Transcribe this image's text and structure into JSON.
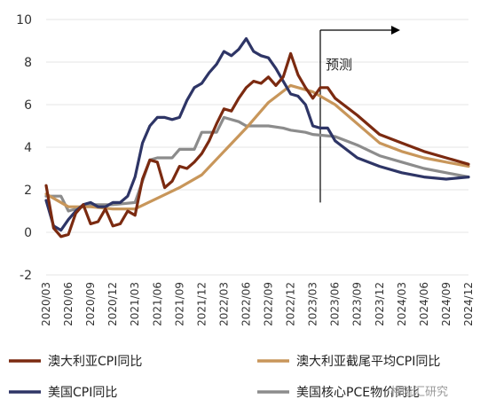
{
  "chart_data": {
    "type": "line",
    "ylim": [
      -2,
      10
    ],
    "y_ticks": [
      -2,
      0,
      2,
      4,
      6,
      8,
      10
    ],
    "x_labels": [
      "2020/03",
      "2020/06",
      "2020/09",
      "2020/12",
      "2021/03",
      "2021/06",
      "2021/09",
      "2021/12",
      "2022/03",
      "2022/06",
      "2022/09",
      "2022/12",
      "2023/03",
      "2023/06",
      "2023/09",
      "2023/12",
      "2024/03",
      "2024/06",
      "2024/09",
      "2024/12"
    ],
    "x_start": "2020/03",
    "x_end": "2024/12",
    "forecast_start": "2023/04",
    "annotation": "预测",
    "series": [
      {
        "name": "澳大利亚CPI同比",
        "color": "#7b2a10",
        "points": [
          [
            "2020/03",
            2.2
          ],
          [
            "2020/04",
            0.2
          ],
          [
            "2020/05",
            -0.2
          ],
          [
            "2020/06",
            -0.1
          ],
          [
            "2020/07",
            0.9
          ],
          [
            "2020/08",
            1.3
          ],
          [
            "2020/09",
            0.4
          ],
          [
            "2020/10",
            0.5
          ],
          [
            "2020/11",
            1.1
          ],
          [
            "2020/12",
            0.3
          ],
          [
            "2021/01",
            0.4
          ],
          [
            "2021/02",
            1.0
          ],
          [
            "2021/03",
            0.8
          ],
          [
            "2021/04",
            2.5
          ],
          [
            "2021/05",
            3.4
          ],
          [
            "2021/06",
            3.3
          ],
          [
            "2021/07",
            2.1
          ],
          [
            "2021/08",
            2.4
          ],
          [
            "2021/09",
            3.1
          ],
          [
            "2021/10",
            3.0
          ],
          [
            "2021/11",
            3.3
          ],
          [
            "2021/12",
            3.7
          ],
          [
            "2021/13",
            4.3
          ],
          [
            "2022/02",
            5.1
          ],
          [
            "2022/03",
            5.8
          ],
          [
            "2022/04",
            5.7
          ],
          [
            "2022/05",
            6.3
          ],
          [
            "2022/06",
            6.8
          ],
          [
            "2022/07",
            7.1
          ],
          [
            "2022/08",
            7.0
          ],
          [
            "2022/09",
            7.3
          ],
          [
            "2022/10",
            6.9
          ],
          [
            "2022/11",
            7.3
          ],
          [
            "2022/12",
            8.4
          ],
          [
            "2023/01",
            7.4
          ],
          [
            "2023/02",
            6.8
          ],
          [
            "2023/03",
            6.3
          ],
          [
            "2023/04",
            6.8
          ],
          [
            "2023/05",
            6.8
          ],
          [
            "2023/06",
            6.3
          ],
          [
            "2023/09",
            5.5
          ],
          [
            "2023/12",
            4.6
          ],
          [
            "2024/03",
            4.2
          ],
          [
            "2024/06",
            3.8
          ],
          [
            "2024/09",
            3.5
          ],
          [
            "2024/12",
            3.2
          ]
        ]
      },
      {
        "name": "澳大利亚截尾平均CPI同比",
        "color": "#c8965a",
        "points": [
          [
            "2020/03",
            1.8
          ],
          [
            "2020/06",
            1.2
          ],
          [
            "2020/09",
            1.2
          ],
          [
            "2020/12",
            1.1
          ],
          [
            "2021/03",
            1.1
          ],
          [
            "2021/06",
            1.6
          ],
          [
            "2021/09",
            2.1
          ],
          [
            "2021/12",
            2.7
          ],
          [
            "2022/03",
            3.8
          ],
          [
            "2022/06",
            4.9
          ],
          [
            "2022/09",
            6.1
          ],
          [
            "2022/12",
            6.9
          ],
          [
            "2023/03",
            6.6
          ],
          [
            "2023/06",
            6.0
          ],
          [
            "2023/09",
            5.1
          ],
          [
            "2023/12",
            4.2
          ],
          [
            "2024/03",
            3.8
          ],
          [
            "2024/06",
            3.5
          ],
          [
            "2024/09",
            3.3
          ],
          [
            "2024/12",
            3.1
          ]
        ]
      },
      {
        "name": "美国CPI同比",
        "color": "#2e3566",
        "points": [
          [
            "2020/03",
            1.5
          ],
          [
            "2020/04",
            0.3
          ],
          [
            "2020/05",
            0.1
          ],
          [
            "2020/06",
            0.6
          ],
          [
            "2020/07",
            1.0
          ],
          [
            "2020/08",
            1.3
          ],
          [
            "2020/09",
            1.4
          ],
          [
            "2020/10",
            1.2
          ],
          [
            "2020/11",
            1.2
          ],
          [
            "2020/12",
            1.4
          ],
          [
            "2021/01",
            1.4
          ],
          [
            "2021/02",
            1.7
          ],
          [
            "2021/03",
            2.6
          ],
          [
            "2021/04",
            4.2
          ],
          [
            "2021/05",
            5.0
          ],
          [
            "2021/06",
            5.4
          ],
          [
            "2021/07",
            5.4
          ],
          [
            "2021/08",
            5.3
          ],
          [
            "2021/09",
            5.4
          ],
          [
            "2021/10",
            6.2
          ],
          [
            "2021/11",
            6.8
          ],
          [
            "2021/12",
            7.0
          ],
          [
            "2022/01",
            7.5
          ],
          [
            "2022/02",
            7.9
          ],
          [
            "2022/03",
            8.5
          ],
          [
            "2022/04",
            8.3
          ],
          [
            "2022/05",
            8.6
          ],
          [
            "2022/06",
            9.1
          ],
          [
            "2022/07",
            8.5
          ],
          [
            "2022/08",
            8.3
          ],
          [
            "2022/09",
            8.2
          ],
          [
            "2022/10",
            7.7
          ],
          [
            "2022/11",
            7.1
          ],
          [
            "2022/12",
            6.5
          ],
          [
            "2023/01",
            6.4
          ],
          [
            "2023/02",
            6.0
          ],
          [
            "2023/03",
            5.0
          ],
          [
            "2023/04",
            4.9
          ],
          [
            "2023/05",
            4.9
          ],
          [
            "2023/06",
            4.3
          ],
          [
            "2023/09",
            3.5
          ],
          [
            "2023/12",
            3.1
          ],
          [
            "2024/03",
            2.8
          ],
          [
            "2024/06",
            2.6
          ],
          [
            "2024/09",
            2.5
          ],
          [
            "2024/12",
            2.6
          ]
        ]
      },
      {
        "name": "美国核心PCE物价同比",
        "color": "#8c8c8c",
        "points": [
          [
            "2020/03",
            1.7
          ],
          [
            "2020/05",
            1.7
          ],
          [
            "2020/06",
            1.0
          ],
          [
            "2020/09",
            1.3
          ],
          [
            "2020/12",
            1.3
          ],
          [
            "2021/03",
            1.4
          ],
          [
            "2021/05",
            3.4
          ],
          [
            "2021/06",
            3.5
          ],
          [
            "2021/08",
            3.5
          ],
          [
            "2021/09",
            3.9
          ],
          [
            "2021/11",
            3.9
          ],
          [
            "2021/12",
            4.7
          ],
          [
            "2022/02",
            4.7
          ],
          [
            "2022/03",
            5.4
          ],
          [
            "2022/05",
            5.2
          ],
          [
            "2022/06",
            5.0
          ],
          [
            "2022/08",
            5.0
          ],
          [
            "2022/09",
            5.0
          ],
          [
            "2022/11",
            4.9
          ],
          [
            "2022/12",
            4.8
          ],
          [
            "2023/02",
            4.7
          ],
          [
            "2023/03",
            4.6
          ],
          [
            "2023/06",
            4.5
          ],
          [
            "2023/09",
            4.1
          ],
          [
            "2023/12",
            3.6
          ],
          [
            "2024/03",
            3.3
          ],
          [
            "2024/06",
            3.0
          ],
          [
            "2024/09",
            2.8
          ],
          [
            "2024/12",
            2.6
          ]
        ]
      }
    ],
    "legend_position": "bottom"
  },
  "watermark": "格隆汇研究"
}
